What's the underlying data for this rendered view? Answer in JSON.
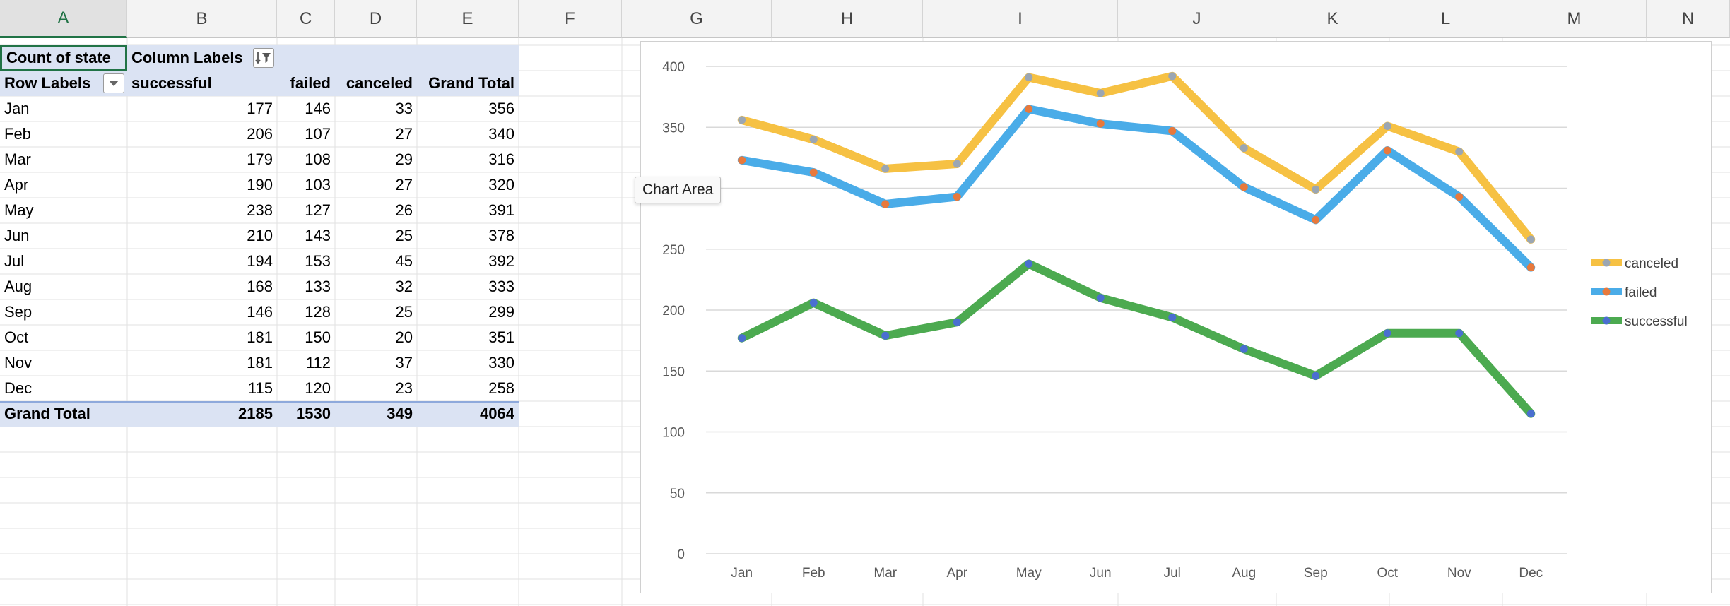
{
  "columns": [
    "A",
    "B",
    "C",
    "D",
    "E",
    "F",
    "G",
    "H",
    "I",
    "J",
    "K",
    "L",
    "M",
    "N"
  ],
  "pivot": {
    "title_cell": "Count of state",
    "column_labels": "Column Labels",
    "row_labels": "Row Labels",
    "headers": [
      "successful",
      "failed",
      "canceled",
      "Grand Total"
    ],
    "rows": [
      {
        "month": "Jan",
        "successful": 177,
        "failed": 146,
        "canceled": 33,
        "total": 356
      },
      {
        "month": "Feb",
        "successful": 206,
        "failed": 107,
        "canceled": 27,
        "total": 340
      },
      {
        "month": "Mar",
        "successful": 179,
        "failed": 108,
        "canceled": 29,
        "total": 316
      },
      {
        "month": "Apr",
        "successful": 190,
        "failed": 103,
        "canceled": 27,
        "total": 320
      },
      {
        "month": "May",
        "successful": 238,
        "failed": 127,
        "canceled": 26,
        "total": 391
      },
      {
        "month": "Jun",
        "successful": 210,
        "failed": 143,
        "canceled": 25,
        "total": 378
      },
      {
        "month": "Jul",
        "successful": 194,
        "failed": 153,
        "canceled": 45,
        "total": 392
      },
      {
        "month": "Aug",
        "successful": 168,
        "failed": 133,
        "canceled": 32,
        "total": 333
      },
      {
        "month": "Sep",
        "successful": 146,
        "failed": 128,
        "canceled": 25,
        "total": 299
      },
      {
        "month": "Oct",
        "successful": 181,
        "failed": 150,
        "canceled": 20,
        "total": 351
      },
      {
        "month": "Nov",
        "successful": 181,
        "failed": 112,
        "canceled": 37,
        "total": 330
      },
      {
        "month": "Dec",
        "successful": 115,
        "failed": 120,
        "canceled": 23,
        "total": 258
      }
    ],
    "grand_total": {
      "label": "Grand Total",
      "successful": 2185,
      "failed": 1530,
      "canceled": 349,
      "total": 4064
    }
  },
  "tooltip": "Chart Area",
  "colors": {
    "canceled": "#f6c143",
    "failed": "#4aace8",
    "successful": "#4caa50",
    "pivot_header_bg": "#dbe3f3",
    "selected_accent": "#217346"
  },
  "chart_data": {
    "type": "line",
    "stacked": true,
    "categories": [
      "Jan",
      "Feb",
      "Mar",
      "Apr",
      "May",
      "Jun",
      "Jul",
      "Aug",
      "Sep",
      "Oct",
      "Nov",
      "Dec"
    ],
    "series": [
      {
        "name": "canceled",
        "values": [
          33,
          27,
          29,
          27,
          26,
          25,
          45,
          32,
          25,
          20,
          37,
          23
        ],
        "color": "#f6c143",
        "marker": "#9ba6b3"
      },
      {
        "name": "failed",
        "values": [
          146,
          107,
          108,
          103,
          127,
          143,
          153,
          133,
          128,
          150,
          112,
          120
        ],
        "color": "#4aace8",
        "marker": "#e8793c"
      },
      {
        "name": "successful",
        "values": [
          177,
          206,
          179,
          190,
          238,
          210,
          194,
          168,
          146,
          181,
          181,
          115
        ],
        "color": "#4caa50",
        "marker": "#4a6fd0"
      }
    ],
    "ylim": [
      0,
      400
    ],
    "yticks": [
      0,
      50,
      100,
      150,
      200,
      250,
      300,
      350,
      400
    ],
    "grid": true,
    "legend": "right"
  }
}
